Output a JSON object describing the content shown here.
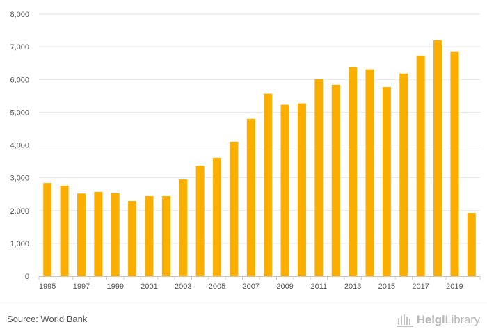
{
  "chart_data": {
    "type": "bar",
    "categories": [
      "1995",
      "1996",
      "1997",
      "1998",
      "1999",
      "2000",
      "2001",
      "2002",
      "2003",
      "2004",
      "2005",
      "2006",
      "2007",
      "2008",
      "2009",
      "2010",
      "2011",
      "2012",
      "2013",
      "2014",
      "2015",
      "2016",
      "2017",
      "2018",
      "2019",
      "2020"
    ],
    "values": [
      2840,
      2760,
      2520,
      2570,
      2530,
      2290,
      2440,
      2440,
      2950,
      3370,
      3610,
      4100,
      4800,
      5570,
      5230,
      5270,
      6010,
      5840,
      6380,
      6310,
      5770,
      6180,
      6730,
      7200,
      6840,
      1930
    ],
    "x_tick_labels": [
      "1995",
      "1997",
      "1999",
      "2001",
      "2003",
      "2005",
      "2007",
      "2009",
      "2011",
      "2013",
      "2015",
      "2017",
      "2019"
    ],
    "y_tick_labels": [
      "0",
      "1,000",
      "2,000",
      "3,000",
      "4,000",
      "5,000",
      "6,000",
      "7,000",
      "8,000"
    ],
    "ylim": [
      0,
      8000
    ],
    "ytick_step": 1000,
    "title": "",
    "xlabel": "",
    "ylabel": "",
    "grid": true,
    "legend": "none",
    "bar_color": "#f9ae00",
    "grid_color": "#e6e6e6"
  },
  "footer": {
    "source": "Source: World Bank",
    "logo_text_bold": "Helgi",
    "logo_text_light": "Library",
    "logo_icon": "library-columns-icon"
  }
}
